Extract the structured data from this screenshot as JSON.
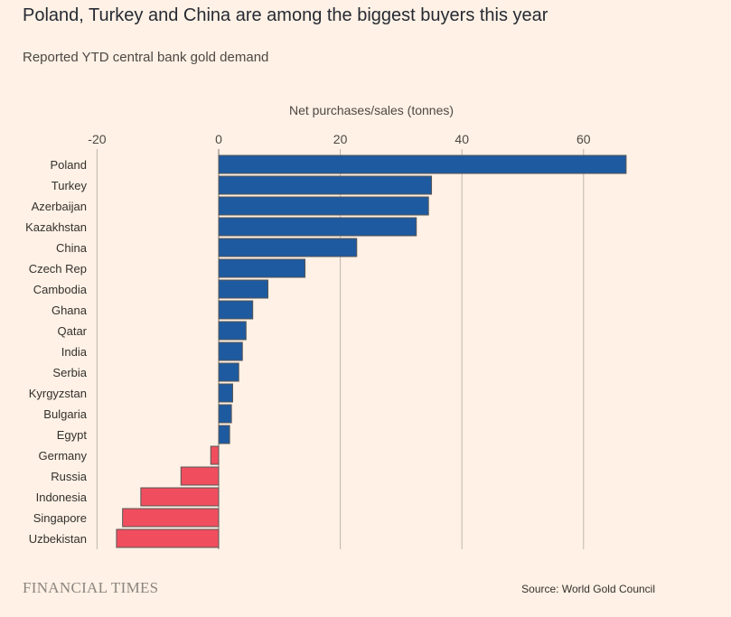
{
  "header": {
    "title": "Poland, Turkey and China are among the biggest buyers this year",
    "subtitle": "Reported YTD central bank gold demand"
  },
  "footer": {
    "brand": "FINANCIAL TIMES",
    "source": "Source: World Gold Council"
  },
  "colors": {
    "positive": "#1e5aa0",
    "negative": "#f04e5f",
    "bar_stroke": "#555555",
    "grid": "#bfb6ad"
  },
  "chart_data": {
    "type": "bar",
    "orientation": "horizontal",
    "xlabel": "Net purchases/sales (tonnes)",
    "xlim": [
      -20,
      70
    ],
    "xticks": [
      -20,
      0,
      20,
      40,
      60
    ],
    "grid": true,
    "categories": [
      "Poland",
      "Turkey",
      "Azerbaijan",
      "Kazakhstan",
      "China",
      "Czech Rep",
      "Cambodia",
      "Ghana",
      "Qatar",
      "India",
      "Serbia",
      "Kyrgyzstan",
      "Bulgaria",
      "Egypt",
      "Germany",
      "Russia",
      "Indonesia",
      "Singapore",
      "Uzbekistan"
    ],
    "values": [
      67,
      35,
      34.5,
      32.5,
      22.7,
      14.2,
      8.1,
      5.6,
      4.5,
      3.9,
      3.3,
      2.3,
      2.1,
      1.8,
      -1.3,
      -6.2,
      -12.8,
      -15.8,
      -16.8
    ]
  }
}
